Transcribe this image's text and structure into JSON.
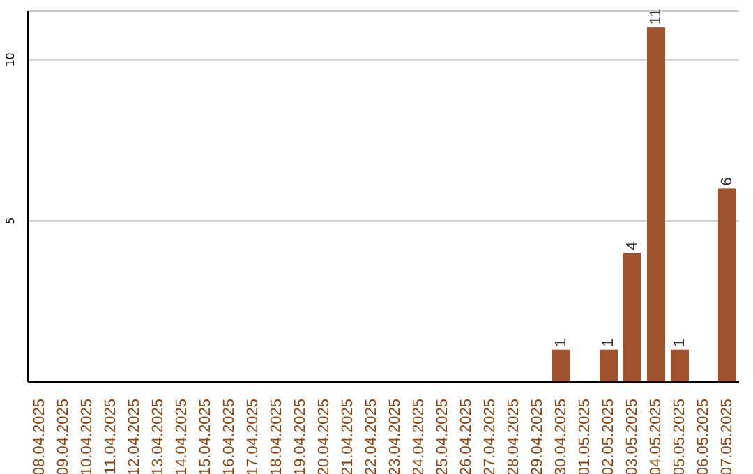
{
  "chart_data": {
    "type": "bar",
    "categories": [
      "08.04.2025",
      "09.04.2025",
      "10.04.2025",
      "11.04.2025",
      "12.04.2025",
      "13.04.2025",
      "14.04.2025",
      "15.04.2025",
      "16.04.2025",
      "17.04.2025",
      "18.04.2025",
      "19.04.2025",
      "20.04.2025",
      "21.04.2025",
      "22.04.2025",
      "23.04.2025",
      "24.04.2025",
      "25.04.2025",
      "26.04.2025",
      "27.04.2025",
      "28.04.2025",
      "29.04.2025",
      "30.04.2025",
      "01.05.2025",
      "02.05.2025",
      "03.05.2025",
      "04.05.2025",
      "05.05.2025",
      "06.05.2025",
      "07.05.2025"
    ],
    "values": [
      0,
      0,
      0,
      0,
      0,
      0,
      0,
      0,
      0,
      0,
      0,
      0,
      0,
      0,
      0,
      0,
      0,
      0,
      0,
      0,
      0,
      0,
      1,
      0,
      1,
      4,
      11,
      1,
      0,
      6
    ],
    "value_labels": [
      null,
      null,
      null,
      null,
      null,
      null,
      null,
      null,
      null,
      null,
      null,
      null,
      null,
      null,
      null,
      null,
      null,
      null,
      null,
      null,
      null,
      null,
      "1",
      null,
      "1",
      "4",
      "11",
      "1",
      null,
      "6"
    ],
    "color": "#a0522d",
    "ylim": [
      0,
      11.5
    ],
    "yticks": [
      5,
      10
    ],
    "grid": "y"
  }
}
